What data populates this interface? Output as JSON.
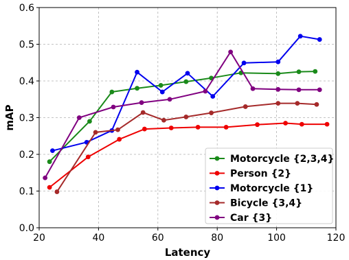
{
  "chart_data": {
    "type": "line",
    "xlabel": "Latency",
    "ylabel": "mAP",
    "xlim": [
      20,
      120
    ],
    "ylim": [
      0.0,
      0.6
    ],
    "x_ticks": [
      "20",
      "40",
      "60",
      "80",
      "100",
      "120"
    ],
    "y_ticks": [
      "0.0",
      "0.1",
      "0.2",
      "0.3",
      "0.4",
      "0.5",
      "0.6"
    ],
    "grid": true,
    "legend_position": "lower-right",
    "series": [
      {
        "name": "Motorcycle {2,3,4}",
        "color": "#1a8a1a",
        "points": [
          [
            23.5,
            0.18
          ],
          [
            37,
            0.29
          ],
          [
            44.5,
            0.37
          ],
          [
            53,
            0.38
          ],
          [
            61,
            0.388
          ],
          [
            69.5,
            0.398
          ],
          [
            78,
            0.408
          ],
          [
            88,
            0.422
          ],
          [
            100.5,
            0.42
          ],
          [
            107.5,
            0.425
          ],
          [
            113,
            0.426
          ]
        ]
      },
      {
        "name": "Person {2}",
        "color": "#ee0000",
        "points": [
          [
            23.5,
            0.11
          ],
          [
            36.5,
            0.193
          ],
          [
            47,
            0.241
          ],
          [
            55.5,
            0.269
          ],
          [
            64.5,
            0.272
          ],
          [
            73.5,
            0.274
          ],
          [
            83,
            0.274
          ],
          [
            93.5,
            0.281
          ],
          [
            103,
            0.285
          ],
          [
            108.5,
            0.282
          ],
          [
            117,
            0.282
          ]
        ]
      },
      {
        "name": "Motorcycle {1}",
        "color": "#0000ee",
        "points": [
          [
            24.5,
            0.21
          ],
          [
            36,
            0.233
          ],
          [
            44.5,
            0.265
          ],
          [
            53,
            0.424
          ],
          [
            61.5,
            0.37
          ],
          [
            70,
            0.421
          ],
          [
            78.5,
            0.358
          ],
          [
            89,
            0.449
          ],
          [
            100.5,
            0.452
          ],
          [
            108,
            0.522
          ],
          [
            114.5,
            0.513
          ]
        ]
      },
      {
        "name": "Bicycle {3,4}",
        "color": "#a52a2a",
        "points": [
          [
            26,
            0.098
          ],
          [
            39,
            0.26
          ],
          [
            46.5,
            0.267
          ],
          [
            55,
            0.314
          ],
          [
            62,
            0.293
          ],
          [
            69.5,
            0.302
          ],
          [
            78,
            0.313
          ],
          [
            89.5,
            0.33
          ],
          [
            100.5,
            0.339
          ],
          [
            107,
            0.339
          ],
          [
            113.5,
            0.336
          ]
        ]
      },
      {
        "name": "Car {3}",
        "color": "#800080",
        "points": [
          [
            22,
            0.136
          ],
          [
            33.5,
            0.3
          ],
          [
            45,
            0.329
          ],
          [
            54.5,
            0.341
          ],
          [
            64,
            0.35
          ],
          [
            76,
            0.372
          ],
          [
            84.5,
            0.479
          ],
          [
            92,
            0.379
          ],
          [
            100.5,
            0.377
          ],
          [
            107.5,
            0.376
          ],
          [
            114.5,
            0.376
          ]
        ]
      }
    ]
  }
}
